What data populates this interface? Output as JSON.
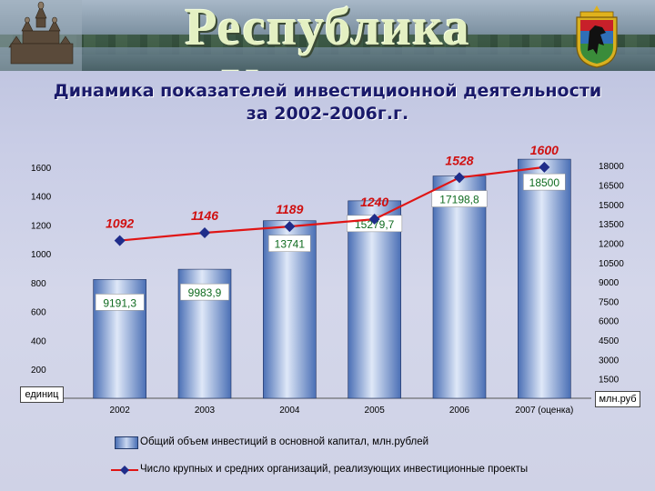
{
  "header": {
    "banner_title": "Республика Карелия",
    "title_line1": "Динамика показателей инвестиционной деятельности",
    "title_line2": "за 2002-2006г.г."
  },
  "chart_data": {
    "type": "bar",
    "categories": [
      "2002",
      "2003",
      "2004",
      "2005",
      "2006",
      "2007 (оценка)"
    ],
    "series": [
      {
        "name": "Общий объем инвестиций в основной капитал, млн.рублей",
        "type": "bar",
        "axis": "right",
        "values": [
          9191.3,
          9983.9,
          13741,
          15279.7,
          17198.8,
          18500
        ],
        "labels": [
          "9191,3",
          "9983,9",
          "13741",
          "15279,7",
          "17198,8",
          "18500"
        ],
        "label_color": "#0f6b1f"
      },
      {
        "name": "Число крупных и средних организаций, реализующих инвестиционные проекты",
        "type": "line",
        "axis": "left",
        "values": [
          1092,
          1146,
          1189,
          1240,
          1528,
          1600
        ],
        "labels": [
          "1092",
          "1146",
          "1189",
          "1240",
          "1528",
          "1600"
        ],
        "label_color": "#d01010"
      }
    ],
    "left_axis": {
      "unit": "единиц",
      "ticks": [
        200,
        400,
        600,
        800,
        1000,
        1200,
        1400,
        1600
      ]
    },
    "right_axis": {
      "unit": "млн.руб",
      "ticks": [
        1500,
        3000,
        4500,
        6000,
        7500,
        9000,
        10500,
        12000,
        13500,
        15000,
        16500,
        18000
      ]
    },
    "colors": {
      "bar": "#4a6fb5",
      "bar_highlight": "#dfe8f8",
      "line": "#e01515",
      "marker": "#1f2d8a"
    }
  }
}
